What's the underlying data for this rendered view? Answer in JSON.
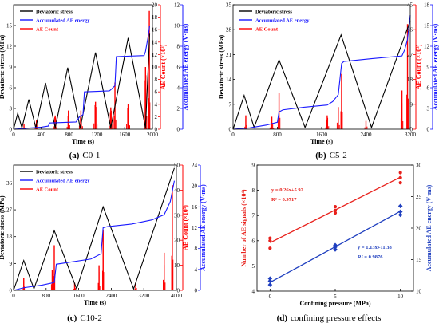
{
  "chart_data": [
    {
      "id": "c01",
      "type": "line",
      "caption_tag": "(a)",
      "caption_name": "C0-1",
      "xlabel": "Time (s)",
      "ylabel_left": "Deviatoric stress (MPa)",
      "ylabel_right1": "AE Count (×10³)",
      "ylabel_right2": "Accumulated AE energy (V·ms)",
      "xlim": [
        0,
        2000
      ],
      "xticks": [
        "0",
        "400",
        "800",
        "1200",
        "1600",
        "2000"
      ],
      "ylim_stress": [
        0,
        18
      ],
      "yticks_stress": [
        "0",
        "3",
        "6",
        "9",
        "12",
        "15"
      ],
      "ylim_count": [
        0,
        20
      ],
      "yticks_count": [
        "0",
        "2",
        "4",
        "6",
        "8",
        "10",
        "12",
        "14",
        "16",
        "18",
        "20"
      ],
      "ylim_energy": [
        0,
        12
      ],
      "yticks_energy": [
        "0",
        "2",
        "4",
        "6",
        "8",
        "10",
        "12"
      ],
      "legend": [
        "Deviatoric stress",
        "Accumulated AE energy",
        "AE Count"
      ],
      "colors": {
        "stress": "#000000",
        "energy": "#1a1aff",
        "count": "#ff0000",
        "right1_axis": "#ff0000",
        "right2_axis": "#1a1aff"
      },
      "stress": {
        "x": [
          0,
          60,
          120,
          220,
          320,
          460,
          600,
          780,
          960,
          1180,
          1400,
          1650,
          1900,
          1960
        ],
        "y": [
          0,
          2.3,
          0.2,
          4.3,
          0.2,
          6.7,
          0.2,
          8.9,
          0.2,
          11.1,
          0.2,
          13.2,
          0.2,
          13.8
        ]
      },
      "energy": {
        "x": [
          0,
          120,
          200,
          400,
          500,
          520,
          900,
          950,
          1000,
          1020,
          1380,
          1400,
          1460,
          1480,
          1880,
          1900,
          1940,
          1960
        ],
        "y": [
          0,
          0.05,
          0.1,
          0.2,
          0.3,
          0.6,
          0.7,
          1.2,
          1.4,
          3.6,
          3.7,
          3.8,
          4.2,
          7.0,
          7.1,
          7.5,
          9.0,
          10.0
        ]
      },
      "count_bursts": [
        {
          "x": 150,
          "h": 0.8,
          "w": 40
        },
        {
          "x": 330,
          "h": 1.4,
          "w": 50
        },
        {
          "x": 600,
          "h": 2.2,
          "w": 60
        },
        {
          "x": 790,
          "h": 3.0,
          "w": 50
        },
        {
          "x": 970,
          "h": 3.0,
          "w": 60
        },
        {
          "x": 1180,
          "h": 4.4,
          "w": 60
        },
        {
          "x": 1400,
          "h": 3.5,
          "w": 60
        },
        {
          "x": 1460,
          "h": 7.5,
          "w": 40
        },
        {
          "x": 1650,
          "h": 4.0,
          "w": 60
        },
        {
          "x": 1900,
          "h": 10.0,
          "w": 50
        },
        {
          "x": 1955,
          "h": 19.0,
          "w": 25
        }
      ]
    },
    {
      "id": "c52",
      "type": "line",
      "caption_tag": "(b)",
      "caption_name": "C5-2",
      "xlabel": "Time (s)",
      "ylabel_left": "Deviatoric stress (MPa)",
      "ylabel_right1": "AE Count (×10³)",
      "ylabel_right2": "Accumulated AE energy (V·ms)",
      "xlim": [
        0,
        3200
      ],
      "xticks": [
        "0",
        "800",
        "1600",
        "2400",
        "3200"
      ],
      "ylim_stress": [
        0,
        35
      ],
      "yticks_stress": [
        "0",
        "7",
        "14",
        "21",
        "28",
        "35"
      ],
      "ylim_count": [
        0,
        45
      ],
      "yticks_count": [
        "0",
        "9",
        "18",
        "27",
        "36",
        "45"
      ],
      "ylim_energy": [
        0,
        18
      ],
      "yticks_energy": [
        "0",
        "3",
        "6",
        "9",
        "12",
        "15",
        "18"
      ],
      "legend": [
        "Deviatoric stress",
        "Accumulated AE energy",
        "AE Count"
      ],
      "colors": {
        "stress": "#000000",
        "energy": "#1a1aff",
        "count": "#ff0000",
        "right1_axis": "#ff0000",
        "right2_axis": "#1a1aff"
      },
      "stress": {
        "x": [
          0,
          200,
          380,
          830,
          1300,
          1950,
          2500,
          3200
        ],
        "y": [
          0,
          9.5,
          0.5,
          19.5,
          0.5,
          26.5,
          0.5,
          30.5
        ]
      },
      "energy": {
        "x": [
          0,
          300,
          600,
          800,
          830,
          900,
          1300,
          1700,
          1800,
          1900,
          1960,
          2000,
          2500,
          3050,
          3100,
          3150,
          3200
        ],
        "y": [
          0,
          0.2,
          0.6,
          1.0,
          2.5,
          2.8,
          3.2,
          3.5,
          4.0,
          5.0,
          9.5,
          9.8,
          10.2,
          10.6,
          11.5,
          13.0,
          16.5
        ]
      },
      "count_bursts": [
        {
          "x": 230,
          "h": 5.0,
          "w": 50
        },
        {
          "x": 700,
          "h": 4.5,
          "w": 80
        },
        {
          "x": 830,
          "h": 13.0,
          "w": 50
        },
        {
          "x": 1700,
          "h": 5.0,
          "w": 70
        },
        {
          "x": 1900,
          "h": 8.0,
          "w": 60
        },
        {
          "x": 1960,
          "h": 20.0,
          "w": 40
        },
        {
          "x": 2400,
          "h": 3.0,
          "w": 60
        },
        {
          "x": 3050,
          "h": 14.0,
          "w": 50
        },
        {
          "x": 3150,
          "h": 38.0,
          "w": 40
        }
      ]
    },
    {
      "id": "c102",
      "type": "line",
      "caption_tag": "(c)",
      "caption_name": "C10-2",
      "xlabel": "Time (s)",
      "ylabel_left": "Deviatoric stress (MPa)",
      "ylabel_right1": "AE Count (×10³)",
      "ylabel_right2": "Accumulated AE energy (V·ms)",
      "xlim": [
        0,
        4000
      ],
      "xticks": [
        "0",
        "800",
        "1600",
        "2400",
        "3200",
        "4000"
      ],
      "ylim_stress": [
        0,
        42
      ],
      "yticks_stress": [
        "0",
        "9",
        "18",
        "27",
        "36"
      ],
      "ylim_count": [
        0,
        50
      ],
      "yticks_count": [
        "0",
        "10",
        "20",
        "30",
        "40",
        "50"
      ],
      "ylim_energy": [
        0,
        24
      ],
      "yticks_energy": [
        "0",
        "4",
        "8",
        "12",
        "16",
        "20",
        "24"
      ],
      "legend": [
        "Deviatoric stress",
        "Accumulated AE energy",
        "AE Count"
      ],
      "colors": {
        "stress": "#000000",
        "energy": "#1a1aff",
        "count": "#ff0000",
        "right1_axis": "#ff0000",
        "right2_axis": "#1a1aff"
      },
      "stress": {
        "x": [
          0,
          250,
          500,
          1000,
          1550,
          2200,
          2950,
          3950
        ],
        "y": [
          0,
          10,
          0.5,
          20,
          0.5,
          28,
          0.5,
          41
        ]
      },
      "energy": {
        "x": [
          0,
          250,
          700,
          1000,
          1050,
          1900,
          2150,
          2200,
          2300,
          2900,
          3400,
          3700,
          3850,
          3950
        ],
        "y": [
          0,
          0.5,
          1.0,
          1.5,
          5.0,
          6.0,
          7.0,
          12.0,
          12.2,
          12.7,
          13.5,
          14.5,
          17.0,
          21.0
        ]
      },
      "count_bursts": [
        {
          "x": 250,
          "h": 5.0,
          "w": 50
        },
        {
          "x": 950,
          "h": 8.0,
          "w": 60
        },
        {
          "x": 1000,
          "h": 18.0,
          "w": 40
        },
        {
          "x": 1500,
          "h": 3.0,
          "w": 60
        },
        {
          "x": 2100,
          "h": 10.0,
          "w": 60
        },
        {
          "x": 2200,
          "h": 24.0,
          "w": 40
        },
        {
          "x": 3000,
          "h": 3.0,
          "w": 60
        },
        {
          "x": 3700,
          "h": 15.0,
          "w": 70
        },
        {
          "x": 3900,
          "h": 42.0,
          "w": 50
        }
      ]
    },
    {
      "id": "conf",
      "type": "scatter",
      "caption_tag": "(d)",
      "caption_name": "confining pressure effects",
      "xlabel": "Confining pressure (MPa)",
      "ylabel_left": "Number of AE signals (×10⁴)",
      "ylabel_right": "Accumulated AE energy (V·ms)",
      "xlim": [
        -1,
        11
      ],
      "xticks": [
        "0",
        "5",
        "10"
      ],
      "ylim_left": [
        4,
        9
      ],
      "yticks_left": [
        "4",
        "5",
        "6",
        "7",
        "8",
        "9"
      ],
      "ylim_right": [
        10,
        30
      ],
      "yticks_right": [
        "10",
        "15",
        "20",
        "25",
        "30"
      ],
      "colors": {
        "left": "#e8211c",
        "right": "#1f3fbf"
      },
      "series": [
        {
          "axis": "left",
          "x": [
            0,
            0,
            0,
            5,
            5,
            5,
            10,
            10,
            10
          ],
          "y": [
            5.7,
            6.0,
            6.1,
            7.1,
            7.2,
            7.35,
            8.3,
            8.5,
            8.7
          ]
        },
        {
          "axis": "right",
          "x": [
            0,
            0,
            0,
            5,
            5,
            5,
            10,
            10,
            10
          ],
          "y": [
            11.0,
            11.6,
            12.0,
            16.6,
            17.0,
            17.3,
            22.1,
            22.6,
            23.5
          ]
        }
      ],
      "fits": [
        {
          "axis": "left",
          "slope": 0.26,
          "intercept": 5.92
        },
        {
          "axis": "right",
          "slope": 1.13,
          "intercept": 11.38
        }
      ],
      "annotations": [
        {
          "axis": "left",
          "equation": "y = 0.26x+5.92",
          "r2": "R² = 0.9717"
        },
        {
          "axis": "right",
          "equation": "y = 1.13x+11.38",
          "r2": "R² = 0.9876"
        }
      ]
    }
  ]
}
